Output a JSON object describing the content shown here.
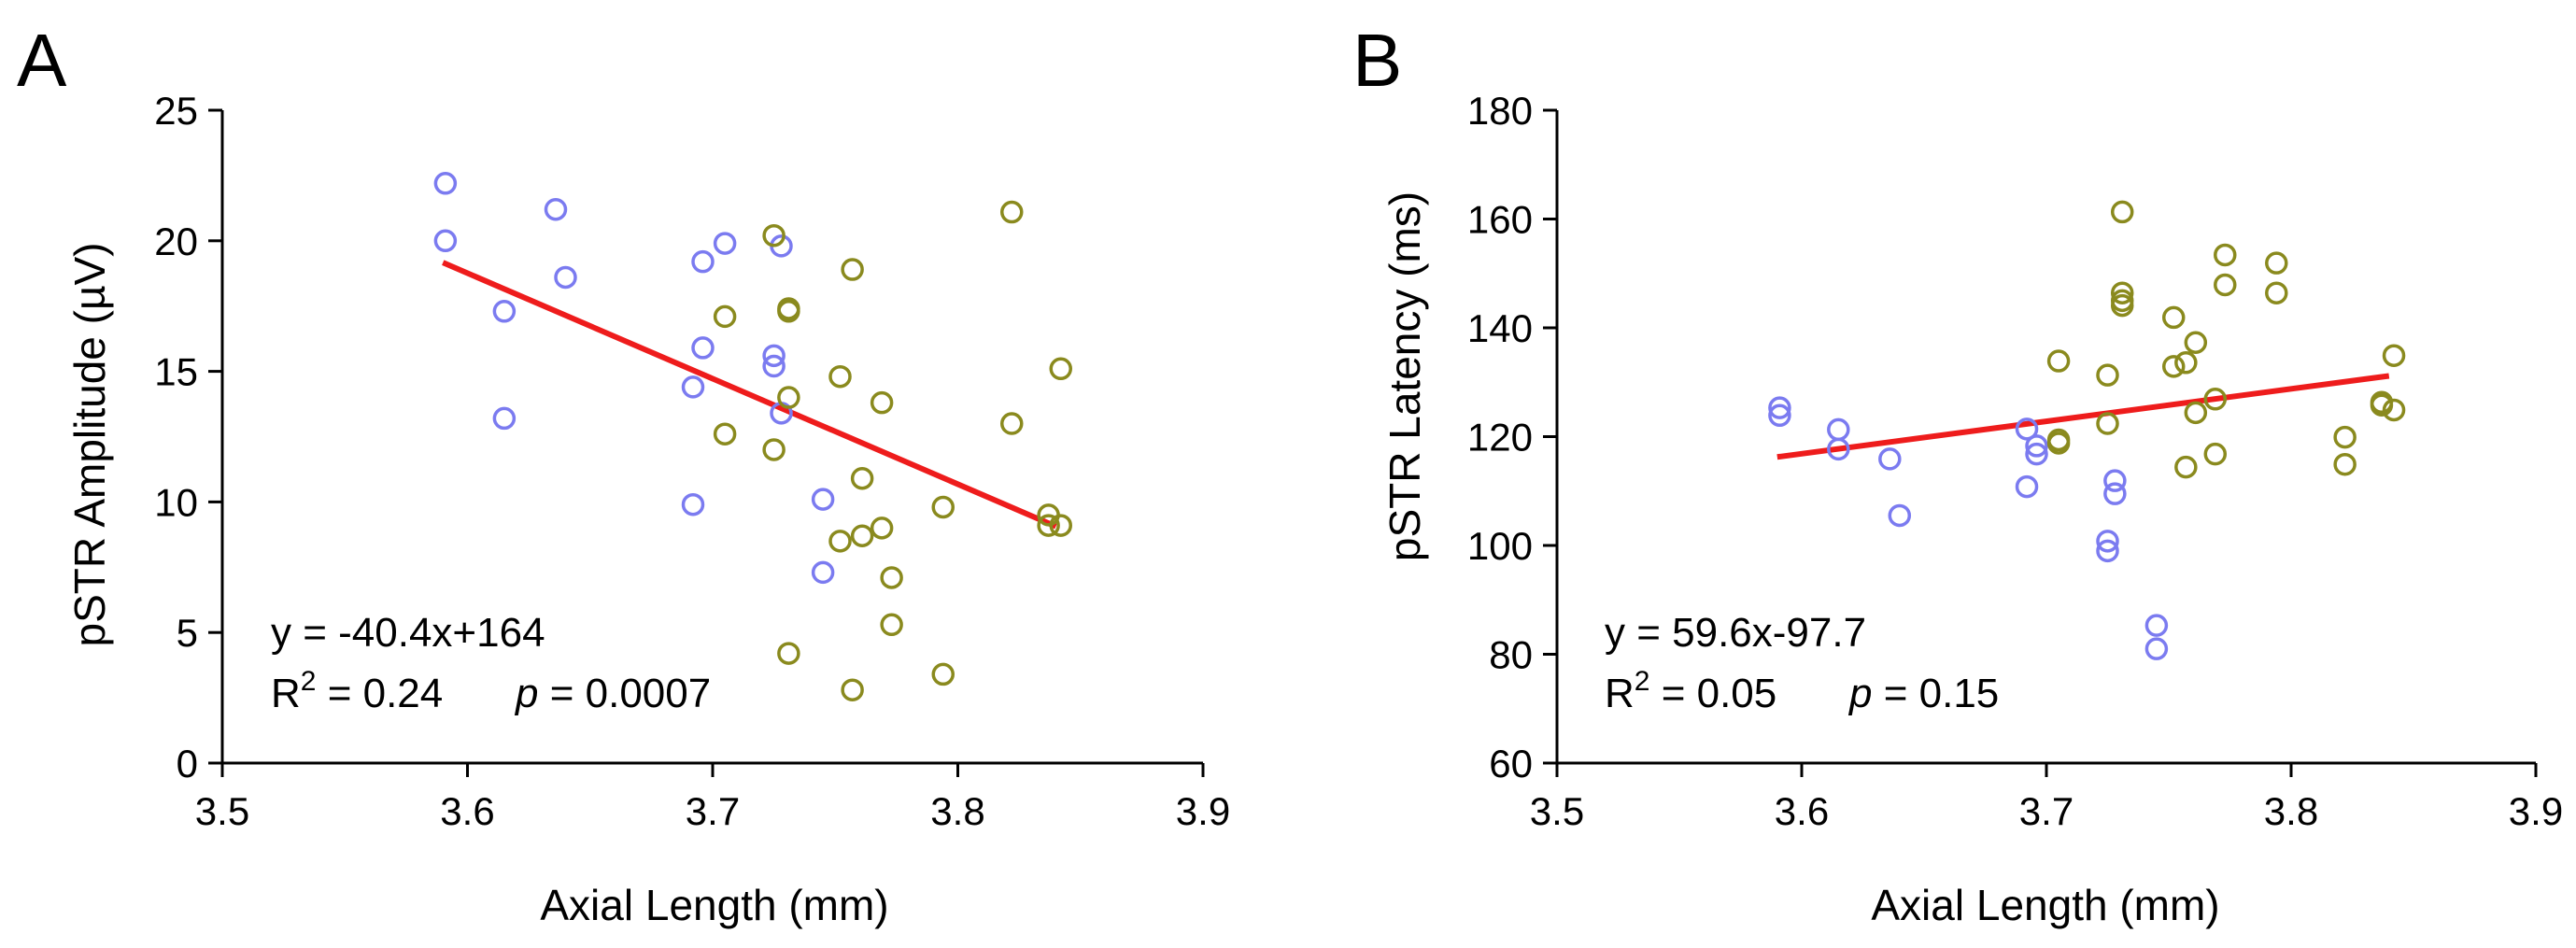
{
  "colors": {
    "group_a": "#7b7bf0",
    "group_b": "#8a8a1e",
    "fit": "#ee1c1c",
    "axis": "#000000"
  },
  "chart_data": [
    {
      "type": "scatter",
      "panel": "A",
      "xlabel": "Axial Length (mm)",
      "ylabel": "pSTR Amplitude (µV)",
      "xlim": [
        3.5,
        3.9
      ],
      "ylim": [
        0,
        25
      ],
      "xticks": [
        "3.5",
        "3.6",
        "3.7",
        "3.8",
        "3.9"
      ],
      "yticks": [
        "0",
        "5",
        "10",
        "15",
        "20",
        "25"
      ],
      "grid": false,
      "equation": "y = -40.4x+164",
      "r2_prefix": "R",
      "r2_sup": "2",
      "r2_value": " = 0.24",
      "p_label": "p",
      "p_value": " = 0.0007",
      "fit": {
        "slope": -40.4,
        "intercept": 164.2,
        "x_range": [
          3.59,
          3.84
        ]
      },
      "series": [
        {
          "color": "#7b7bf0",
          "points": [
            [
              3.591,
              22.2
            ],
            [
              3.591,
              20.0
            ],
            [
              3.615,
              17.3
            ],
            [
              3.615,
              13.2
            ],
            [
              3.636,
              21.2
            ],
            [
              3.64,
              18.6
            ],
            [
              3.692,
              14.4
            ],
            [
              3.692,
              9.9
            ],
            [
              3.696,
              19.2
            ],
            [
              3.696,
              15.9
            ],
            [
              3.705,
              19.9
            ],
            [
              3.725,
              15.6
            ],
            [
              3.725,
              15.2
            ],
            [
              3.728,
              19.8
            ],
            [
              3.728,
              13.4
            ],
            [
              3.745,
              10.1
            ],
            [
              3.745,
              7.3
            ]
          ]
        },
        {
          "color": "#8a8a1e",
          "points": [
            [
              3.705,
              17.1
            ],
            [
              3.705,
              12.6
            ],
            [
              3.725,
              20.2
            ],
            [
              3.725,
              12.0
            ],
            [
              3.731,
              17.4
            ],
            [
              3.731,
              17.3
            ],
            [
              3.731,
              14.0
            ],
            [
              3.731,
              4.2
            ],
            [
              3.752,
              14.8
            ],
            [
              3.752,
              8.5
            ],
            [
              3.757,
              18.9
            ],
            [
              3.757,
              2.8
            ],
            [
              3.761,
              10.9
            ],
            [
              3.761,
              8.7
            ],
            [
              3.769,
              13.8
            ],
            [
              3.769,
              9.0
            ],
            [
              3.773,
              7.1
            ],
            [
              3.773,
              5.3
            ],
            [
              3.794,
              9.8
            ],
            [
              3.794,
              3.4
            ],
            [
              3.822,
              21.1
            ],
            [
              3.822,
              13.0
            ],
            [
              3.837,
              9.5
            ],
            [
              3.837,
              9.1
            ],
            [
              3.842,
              15.1
            ],
            [
              3.842,
              9.1
            ]
          ]
        }
      ]
    },
    {
      "type": "scatter",
      "panel": "B",
      "xlabel": "Axial Length (mm)",
      "ylabel": "pSTR Latency (ms)",
      "xlim": [
        3.5,
        3.9
      ],
      "ylim": [
        60,
        180
      ],
      "xticks": [
        "3.5",
        "3.6",
        "3.7",
        "3.8",
        "3.9"
      ],
      "yticks": [
        "60",
        "80",
        "100",
        "120",
        "140",
        "160",
        "180"
      ],
      "grid": false,
      "equation": "y = 59.6x-97.7",
      "r2_prefix": "R",
      "r2_sup": "2",
      "r2_value": " = 0.05",
      "p_label": "p",
      "p_value": " = 0.15",
      "fit": {
        "slope": 59.6,
        "intercept": -97.7,
        "x_range": [
          3.59,
          3.84
        ]
      },
      "series": [
        {
          "color": "#7b7bf0",
          "points": [
            [
              3.591,
              125.3
            ],
            [
              3.591,
              123.9
            ],
            [
              3.615,
              121.3
            ],
            [
              3.615,
              117.7
            ],
            [
              3.636,
              115.9
            ],
            [
              3.64,
              105.5
            ],
            [
              3.692,
              121.4
            ],
            [
              3.692,
              110.8
            ],
            [
              3.696,
              118.3
            ],
            [
              3.696,
              116.8
            ],
            [
              3.725,
              100.8
            ],
            [
              3.725,
              99.0
            ],
            [
              3.728,
              111.9
            ],
            [
              3.728,
              109.5
            ],
            [
              3.745,
              85.3
            ],
            [
              3.745,
              81.0
            ]
          ]
        },
        {
          "color": "#8a8a1e",
          "points": [
            [
              3.705,
              133.9
            ],
            [
              3.705,
              119.4
            ],
            [
              3.705,
              118.8
            ],
            [
              3.725,
              131.3
            ],
            [
              3.725,
              122.4
            ],
            [
              3.731,
              161.3
            ],
            [
              3.731,
              146.4
            ],
            [
              3.731,
              145.0
            ],
            [
              3.731,
              144.1
            ],
            [
              3.752,
              141.9
            ],
            [
              3.752,
              132.9
            ],
            [
              3.757,
              133.6
            ],
            [
              3.757,
              114.4
            ],
            [
              3.761,
              137.3
            ],
            [
              3.761,
              124.4
            ],
            [
              3.769,
              126.9
            ],
            [
              3.769,
              116.8
            ],
            [
              3.773,
              153.4
            ],
            [
              3.773,
              147.9
            ],
            [
              3.794,
              151.9
            ],
            [
              3.794,
              146.4
            ],
            [
              3.822,
              119.9
            ],
            [
              3.822,
              114.9
            ],
            [
              3.837,
              126.3
            ],
            [
              3.837,
              125.8
            ],
            [
              3.842,
              134.9
            ],
            [
              3.842,
              124.9
            ]
          ]
        }
      ]
    }
  ]
}
